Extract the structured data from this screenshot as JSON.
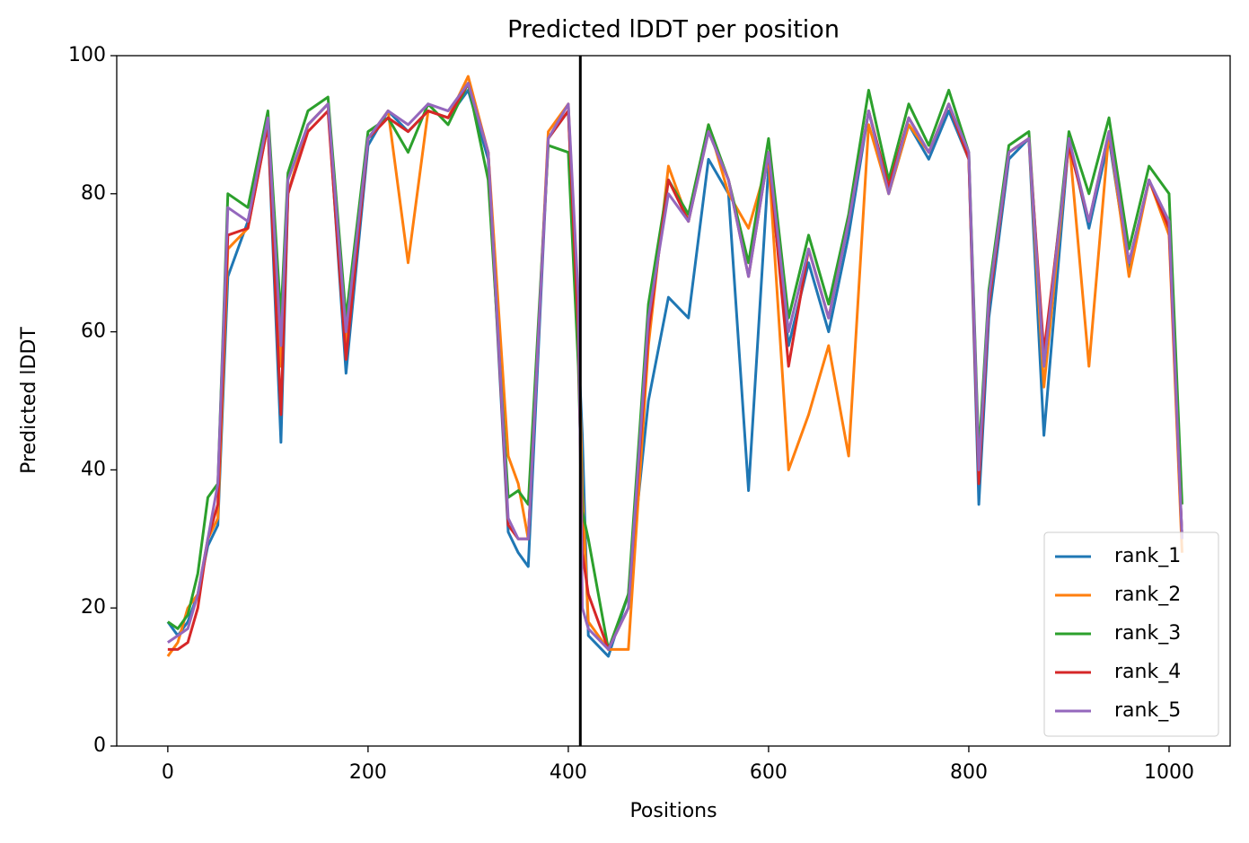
{
  "chart_data": {
    "type": "line",
    "title": "Predicted lDDT per position",
    "xlabel": "Positions",
    "ylabel": "Predicted lDDT",
    "x": [
      0,
      10,
      20,
      30,
      40,
      50,
      60,
      80,
      100,
      113,
      120,
      140,
      160,
      178,
      200,
      220,
      240,
      260,
      280,
      300,
      320,
      340,
      350,
      360,
      380,
      400,
      410,
      414,
      420,
      440,
      460,
      480,
      500,
      520,
      540,
      560,
      580,
      600,
      620,
      640,
      660,
      680,
      700,
      720,
      740,
      760,
      780,
      800,
      810,
      820,
      840,
      860,
      875,
      900,
      920,
      940,
      960,
      980,
      1000,
      1013
    ],
    "series": [
      {
        "name": "rank_1",
        "color": "#1f77b4",
        "values": [
          18,
          16,
          18,
          22,
          29,
          32,
          68,
          76,
          90,
          44,
          80,
          90,
          93,
          54,
          87,
          92,
          89,
          92,
          91,
          95,
          85,
          31,
          28,
          26,
          88,
          92,
          58,
          45,
          16,
          13,
          22,
          50,
          65,
          62,
          85,
          80,
          37,
          84,
          58,
          70,
          60,
          74,
          92,
          80,
          90,
          85,
          92,
          85,
          35,
          62,
          85,
          88,
          45,
          88,
          75,
          88,
          69,
          82,
          75,
          30
        ]
      },
      {
        "name": "rank_2",
        "color": "#ff7f0e",
        "values": [
          13,
          15,
          20,
          22,
          30,
          33,
          72,
          75,
          90,
          55,
          80,
          90,
          93,
          58,
          88,
          92,
          70,
          92,
          91,
          97,
          86,
          42,
          38,
          30,
          89,
          93,
          62,
          37,
          18,
          14,
          14,
          58,
          84,
          76,
          90,
          80,
          75,
          85,
          40,
          48,
          58,
          42,
          90,
          80,
          90,
          86,
          93,
          85,
          41,
          64,
          86,
          88,
          52,
          88,
          55,
          89,
          68,
          82,
          74,
          28
        ]
      },
      {
        "name": "rank_3",
        "color": "#2ca02c",
        "values": [
          18,
          17,
          19,
          25,
          36,
          38,
          80,
          78,
          92,
          62,
          83,
          92,
          94,
          62,
          89,
          91,
          86,
          93,
          90,
          96,
          82,
          36,
          37,
          35,
          87,
          86,
          55,
          34,
          30,
          14,
          22,
          64,
          82,
          77,
          90,
          82,
          70,
          88,
          62,
          74,
          64,
          77,
          95,
          82,
          93,
          87,
          95,
          86,
          42,
          66,
          87,
          89,
          55,
          89,
          80,
          91,
          72,
          84,
          80,
          35
        ]
      },
      {
        "name": "rank_4",
        "color": "#d62728",
        "values": [
          14,
          14,
          15,
          20,
          30,
          35,
          74,
          75,
          90,
          48,
          80,
          89,
          92,
          56,
          88,
          91,
          89,
          92,
          91,
          96,
          86,
          32,
          30,
          30,
          88,
          92,
          60,
          28,
          22,
          14,
          20,
          60,
          82,
          76,
          89,
          82,
          68,
          86,
          55,
          72,
          62,
          76,
          92,
          81,
          91,
          86,
          93,
          85,
          38,
          64,
          86,
          88,
          57,
          87,
          76,
          89,
          70,
          82,
          75,
          30
        ]
      },
      {
        "name": "rank_5",
        "color": "#9467bd",
        "values": [
          15,
          16,
          17,
          22,
          30,
          38,
          78,
          76,
          91,
          58,
          82,
          90,
          93,
          60,
          88,
          92,
          90,
          93,
          92,
          96,
          86,
          33,
          30,
          30,
          88,
          93,
          65,
          20,
          17,
          14,
          20,
          62,
          80,
          76,
          89,
          82,
          68,
          86,
          60,
          72,
          62,
          76,
          92,
          80,
          91,
          86,
          93,
          86,
          40,
          65,
          86,
          88,
          55,
          88,
          76,
          89,
          70,
          82,
          76,
          30
        ]
      }
    ],
    "vline": 412,
    "xlim": [
      -51,
      1061
    ],
    "ylim": [
      0,
      100
    ],
    "xticks": [
      0,
      200,
      400,
      600,
      800,
      1000
    ],
    "yticks": [
      0,
      20,
      40,
      60,
      80,
      100
    ],
    "legend": "lower right"
  }
}
